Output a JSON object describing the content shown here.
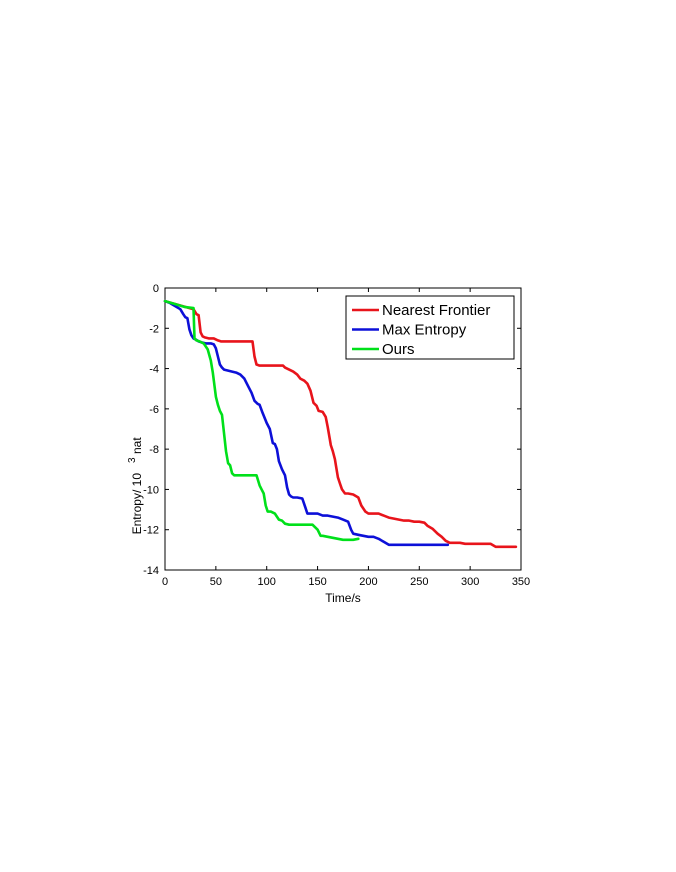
{
  "chart_data": {
    "type": "line",
    "title": "",
    "xlabel": "Time/s",
    "ylabel_main": "Entropy/ 10",
    "ylabel_sup": "3",
    "ylabel_unit": "nat",
    "xlim": [
      0,
      350
    ],
    "ylim": [
      -14,
      0
    ],
    "xticks": [
      0,
      50,
      100,
      150,
      200,
      250,
      300,
      350
    ],
    "yticks": [
      0,
      -2,
      -4,
      -6,
      -8,
      -10,
      -12,
      -14
    ],
    "grid": false,
    "legend": "top-right",
    "series": [
      {
        "name": "Nearest Frontier",
        "color": "#e8141b",
        "x": [
          0,
          28,
          31,
          33,
          35,
          37,
          39,
          43,
          48,
          52,
          55,
          60,
          65,
          70,
          75,
          80,
          86,
          88,
          90,
          93,
          100,
          110,
          116,
          118,
          122,
          126,
          130,
          133,
          137,
          140,
          143,
          146,
          149,
          151,
          155,
          158,
          160,
          162,
          163,
          165,
          167,
          168,
          170,
          172,
          174,
          177,
          180,
          185,
          190,
          193,
          197,
          200,
          206,
          210,
          215,
          220,
          225,
          230,
          235,
          240,
          245,
          250,
          255,
          258,
          263,
          268,
          272,
          276,
          280,
          285,
          290,
          295,
          300,
          305,
          310,
          315,
          320,
          325,
          328,
          332,
          337,
          340,
          345
        ],
        "y": [
          -0.65,
          -1.05,
          -1.3,
          -1.35,
          -2.2,
          -2.4,
          -2.45,
          -2.5,
          -2.5,
          -2.6,
          -2.65,
          -2.65,
          -2.65,
          -2.65,
          -2.65,
          -2.65,
          -2.65,
          -3.4,
          -3.8,
          -3.85,
          -3.85,
          -3.85,
          -3.85,
          -3.95,
          -4.05,
          -4.15,
          -4.3,
          -4.5,
          -4.6,
          -4.75,
          -5.1,
          -5.7,
          -5.85,
          -6.1,
          -6.15,
          -6.4,
          -6.9,
          -7.5,
          -7.8,
          -8.1,
          -8.5,
          -8.8,
          -9.4,
          -9.7,
          -10,
          -10.2,
          -10.2,
          -10.25,
          -10.4,
          -10.8,
          -11.1,
          -11.2,
          -11.2,
          -11.2,
          -11.3,
          -11.4,
          -11.45,
          -11.5,
          -11.55,
          -11.55,
          -11.6,
          -11.6,
          -11.65,
          -11.8,
          -11.95,
          -12.2,
          -12.35,
          -12.55,
          -12.65,
          -12.65,
          -12.65,
          -12.7,
          -12.7,
          -12.7,
          -12.7,
          -12.7,
          -12.7,
          -12.85,
          -12.85,
          -12.85,
          -12.85,
          -12.85,
          -12.85
        ]
      },
      {
        "name": "Max Entropy",
        "color": "#0d10d8",
        "x": [
          0,
          5,
          10,
          15,
          18,
          20,
          22,
          24,
          26,
          28,
          30,
          33,
          36,
          40,
          45,
          48,
          50,
          52,
          54,
          56,
          58,
          62,
          66,
          70,
          74,
          78,
          82,
          85,
          88,
          91,
          93,
          96,
          100,
          103,
          106,
          108,
          110,
          112,
          115,
          118,
          120,
          122,
          124,
          126,
          130,
          135,
          138,
          140,
          145,
          150,
          155,
          160,
          165,
          170,
          175,
          180,
          183,
          185,
          190,
          195,
          200,
          205,
          210,
          215,
          220,
          230,
          240,
          250,
          260,
          270,
          278
        ],
        "y": [
          -0.65,
          -0.75,
          -0.9,
          -1.05,
          -1.3,
          -1.45,
          -1.5,
          -2.05,
          -2.35,
          -2.5,
          -2.55,
          -2.65,
          -2.7,
          -2.75,
          -2.75,
          -2.8,
          -3.0,
          -3.4,
          -3.8,
          -3.95,
          -4.05,
          -4.1,
          -4.15,
          -4.2,
          -4.3,
          -4.5,
          -4.9,
          -5.2,
          -5.6,
          -5.75,
          -5.8,
          -6.2,
          -6.7,
          -7.0,
          -7.7,
          -7.75,
          -8.0,
          -8.6,
          -9.0,
          -9.3,
          -9.9,
          -10.25,
          -10.35,
          -10.4,
          -10.4,
          -10.45,
          -10.9,
          -11.2,
          -11.2,
          -11.2,
          -11.3,
          -11.3,
          -11.35,
          -11.4,
          -11.5,
          -11.6,
          -12.0,
          -12.2,
          -12.25,
          -12.3,
          -12.35,
          -12.35,
          -12.45,
          -12.6,
          -12.75,
          -12.75,
          -12.75,
          -12.75,
          -12.75,
          -12.75,
          -12.75
        ]
      },
      {
        "name": "Ours",
        "color": "#00e01a",
        "x": [
          0,
          10,
          20,
          28,
          29,
          31,
          34,
          38,
          42,
          45,
          47,
          50,
          52,
          54,
          56,
          58,
          60,
          62,
          64,
          66,
          68,
          72,
          76,
          80,
          85,
          90,
          93,
          95,
          97,
          99,
          101,
          104,
          108,
          112,
          115,
          118,
          122,
          128,
          135,
          145,
          150,
          153,
          155,
          160,
          165,
          170,
          175,
          180,
          185,
          190
        ],
        "y": [
          -0.65,
          -0.8,
          -0.95,
          -1.0,
          -2.5,
          -2.6,
          -2.65,
          -2.75,
          -3.05,
          -3.6,
          -4.2,
          -5.4,
          -5.8,
          -6.1,
          -6.3,
          -7.2,
          -8.1,
          -8.7,
          -8.8,
          -9.2,
          -9.3,
          -9.3,
          -9.3,
          -9.3,
          -9.3,
          -9.3,
          -9.8,
          -10.0,
          -10.2,
          -10.8,
          -11.1,
          -11.1,
          -11.2,
          -11.5,
          -11.55,
          -11.7,
          -11.75,
          -11.75,
          -11.75,
          -11.75,
          -12.0,
          -12.3,
          -12.3,
          -12.35,
          -12.4,
          -12.45,
          -12.5,
          -12.5,
          -12.5,
          -12.45
        ]
      }
    ]
  }
}
